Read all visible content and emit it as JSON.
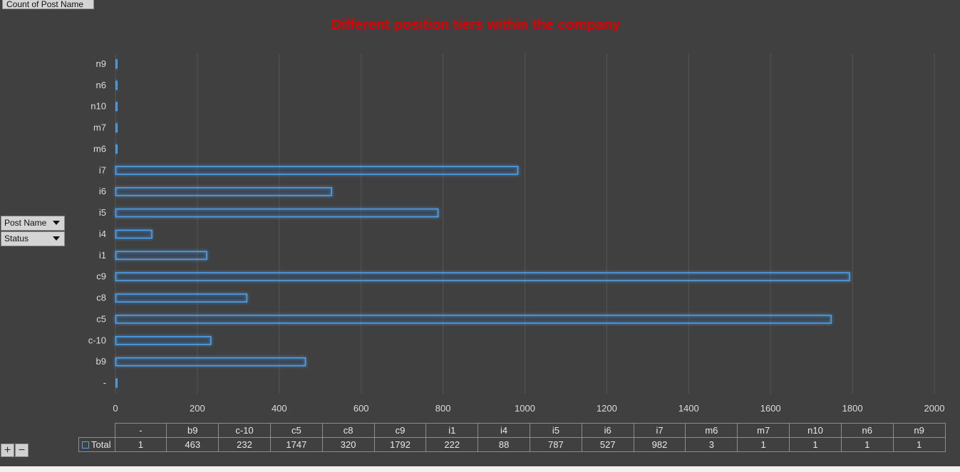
{
  "pivot": {
    "values_field": "Count of Post Name",
    "row_fields": [
      "Post Name",
      "Status"
    ],
    "zoom_in": "+",
    "zoom_out": "−"
  },
  "colors": {
    "bar_stroke": "#4ea3f0",
    "title": "#e00000",
    "background": "#404040"
  },
  "chart_data": {
    "type": "bar",
    "orientation": "horizontal",
    "title": "Different position tiers within the company",
    "categories": [
      "-",
      "b9",
      "c-10",
      "c5",
      "c8",
      "c9",
      "i1",
      "i4",
      "i5",
      "i6",
      "i7",
      "m6",
      "m7",
      "n10",
      "n6",
      "n9"
    ],
    "series": [
      {
        "name": "Total",
        "values": [
          1,
          463,
          232,
          1747,
          320,
          1792,
          222,
          88,
          787,
          527,
          982,
          3,
          1,
          1,
          1,
          1
        ]
      }
    ],
    "xlim": [
      0,
      2000
    ],
    "xticks": [
      0,
      200,
      400,
      600,
      800,
      1000,
      1200,
      1400,
      1600,
      1800,
      2000
    ],
    "grid": true,
    "data_table": true
  }
}
